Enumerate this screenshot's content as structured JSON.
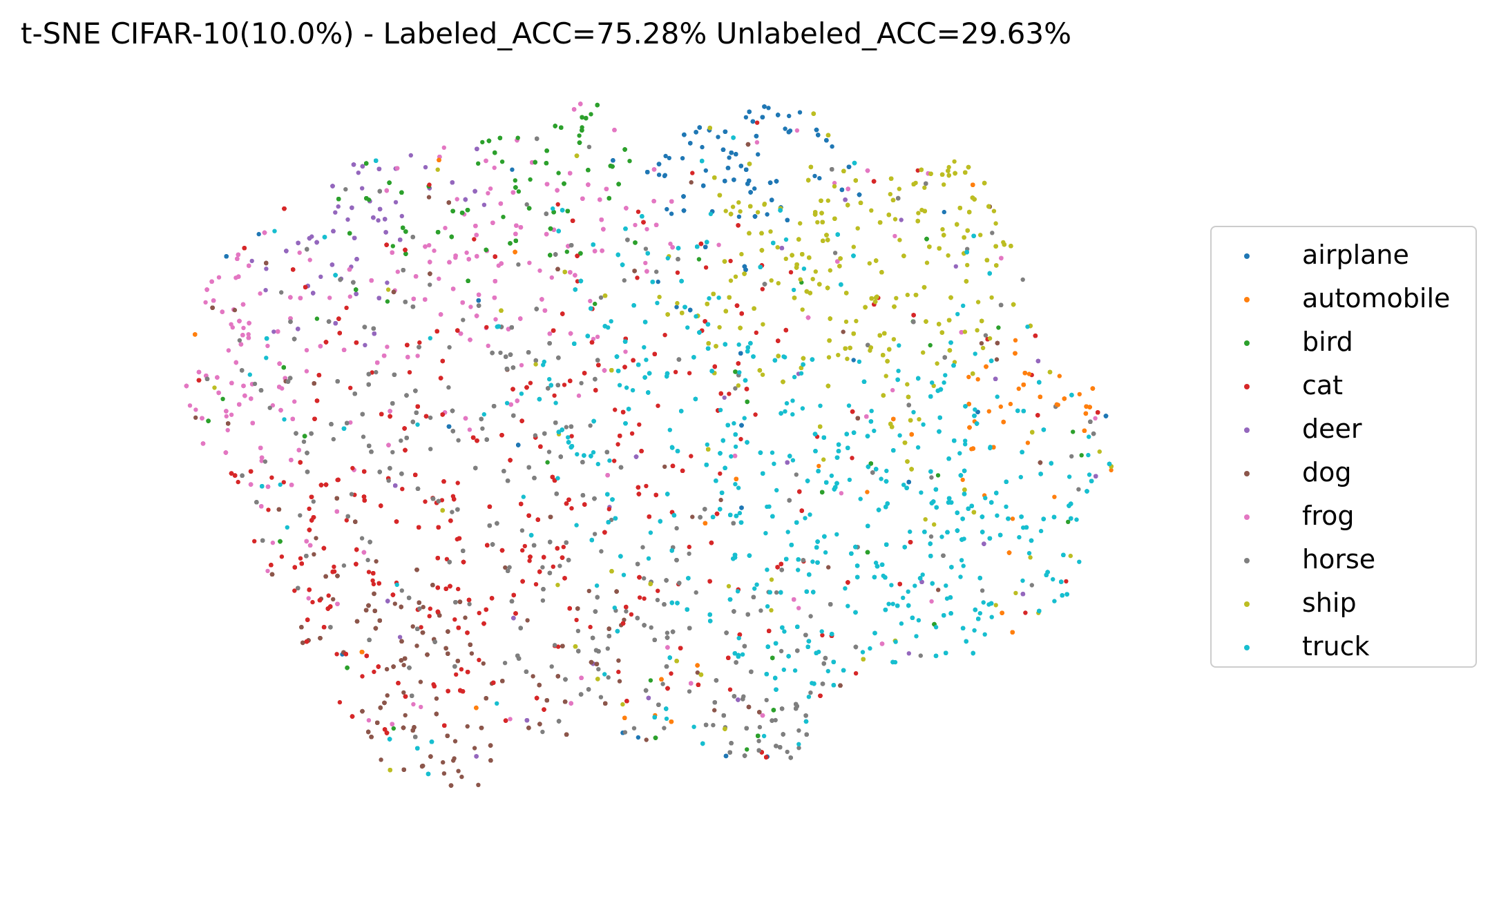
{
  "title": "t-SNE CIFAR-10(10.0%) - Labeled_ACC=75.28% Unlabeled_ACC=29.63%",
  "chart_data": {
    "type": "scatter",
    "title": "t-SNE CIFAR-10(10.0%) - Labeled_ACC=75.28% Unlabeled_ACC=29.63%",
    "xlabel": "",
    "ylabel": "",
    "axes_visible": false,
    "grid": false,
    "legend_position": "right",
    "series": [
      {
        "name": "airplane",
        "color": "#1f77b4",
        "values": []
      },
      {
        "name": "automobile",
        "color": "#ff7f0e",
        "values": []
      },
      {
        "name": "bird",
        "color": "#2ca02c",
        "values": []
      },
      {
        "name": "cat",
        "color": "#d62728",
        "values": []
      },
      {
        "name": "deer",
        "color": "#9467bd",
        "values": []
      },
      {
        "name": "dog",
        "color": "#8c564b",
        "values": []
      },
      {
        "name": "frog",
        "color": "#e377c2",
        "values": []
      },
      {
        "name": "horse",
        "color": "#7f7f7f",
        "values": []
      },
      {
        "name": "ship",
        "color": "#bcbd22",
        "values": []
      },
      {
        "name": "truck",
        "color": "#17becf",
        "values": []
      }
    ]
  }
}
